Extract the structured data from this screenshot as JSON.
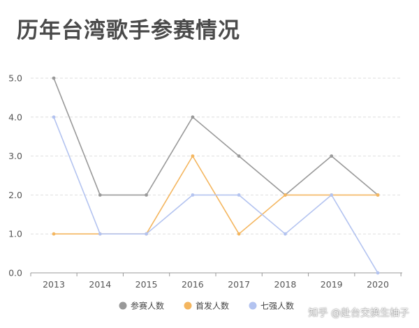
{
  "chart_data": {
    "type": "line",
    "title": "历年台湾歌手参赛情况",
    "categories": [
      "2013",
      "2014",
      "2015",
      "2016",
      "2017",
      "2018",
      "2019",
      "2020"
    ],
    "yticks": [
      "0.0",
      "1.0",
      "2.0",
      "3.0",
      "4.0",
      "5.0"
    ],
    "ylim": [
      0,
      5
    ],
    "grid": true,
    "legend_position": "bottom",
    "series": [
      {
        "name": "参赛人数",
        "color": "#999999",
        "values": [
          5,
          2,
          2,
          4,
          3,
          2,
          3,
          2
        ]
      },
      {
        "name": "首发人数",
        "color": "#f4b65f",
        "values": [
          1,
          1,
          1,
          3,
          1,
          2,
          2,
          2
        ]
      },
      {
        "name": "七强人数",
        "color": "#b3c3f0",
        "values": [
          4,
          1,
          1,
          2,
          2,
          1,
          2,
          0
        ]
      }
    ]
  },
  "watermark": "知乎 @赴台交换生柚子"
}
